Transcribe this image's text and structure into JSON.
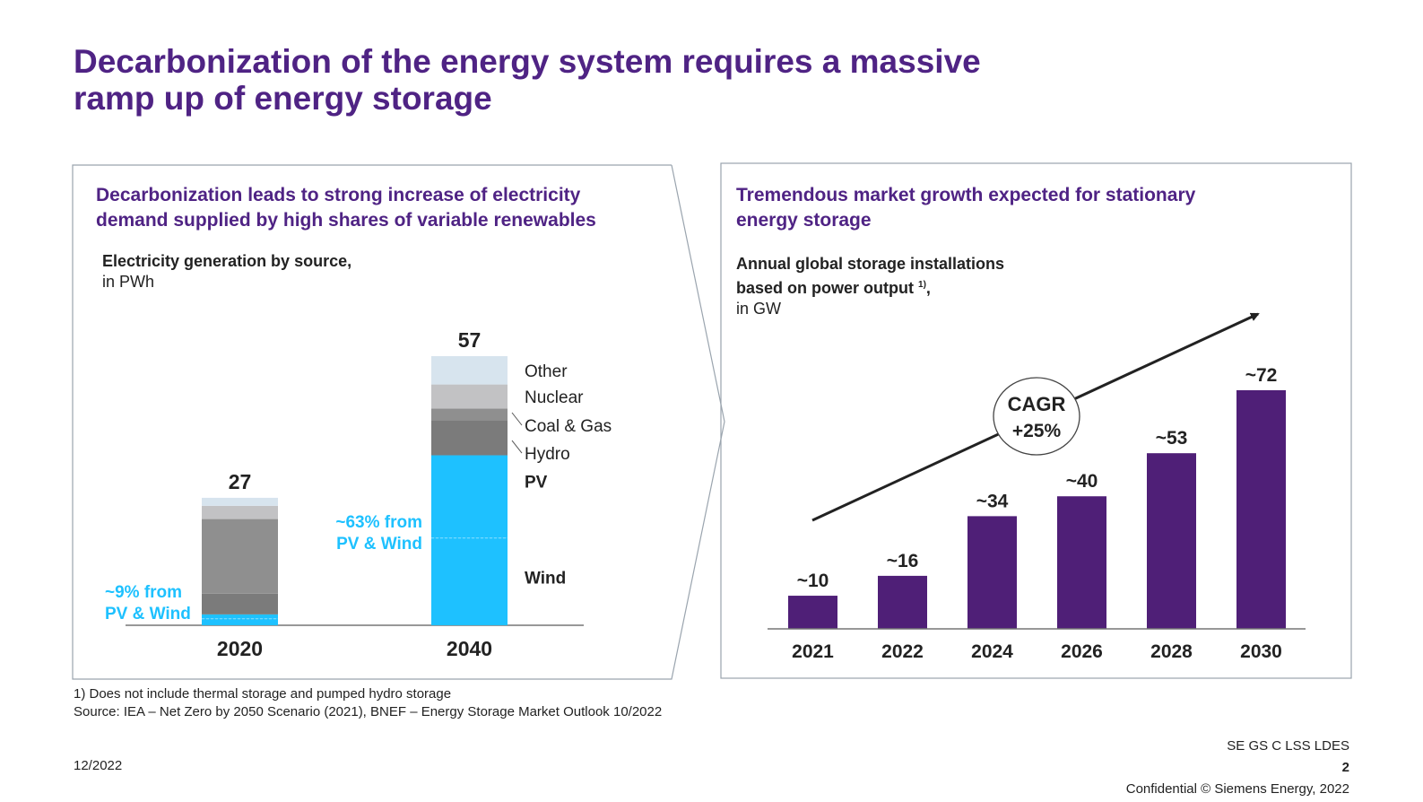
{
  "title": {
    "line1": "Decarbonization of the energy system requires a massive",
    "line2": "ramp up of energy storage"
  },
  "left_panel": {
    "title_line1": "Decarbonization leads to strong increase of electricity",
    "title_line2": "demand supplied by high shares of variable renewables",
    "unit_label": "Electricity generation by source,",
    "unit": "in PWh"
  },
  "right_panel": {
    "title_line1": "Tremendous market growth expected for stationary",
    "title_line2": "energy storage",
    "unit_line1": "Annual global storage installations",
    "unit_line2": "based on power output",
    "unit_sup": "1)",
    "unit_line2_suffix": ",",
    "unit": "in GW"
  },
  "chart_data": [
    {
      "type": "bar",
      "stacked": true,
      "title": "Electricity generation by source",
      "ylabel": "PWh",
      "categories": [
        "2020",
        "2040"
      ],
      "totals": [
        27,
        57
      ],
      "total_labels": [
        "27",
        "57"
      ],
      "series": [
        {
          "name": "Wind",
          "values": [
            1.4,
            18.5
          ],
          "color": "#1ec1ff"
        },
        {
          "name": "PV",
          "values": [
            0.9,
            17.5
          ],
          "color": "#1ec1ff"
        },
        {
          "name": "Hydro",
          "values": [
            4.4,
            7.4
          ],
          "color": "#7b7b7b"
        },
        {
          "name": "Coal & Gas",
          "values": [
            15.8,
            2.5
          ],
          "color": "#8f8f8f"
        },
        {
          "name": "Nuclear",
          "values": [
            2.8,
            5.1
          ],
          "color": "#c2c2c4"
        },
        {
          "name": "Other",
          "values": [
            1.7,
            6.0
          ],
          "color": "#d7e4ee"
        }
      ],
      "annotations": [
        {
          "line1": "~9% from",
          "line2": "PV & Wind",
          "category": "2020"
        },
        {
          "line1": "~63% from",
          "line2": "PV & Wind",
          "category": "2040"
        }
      ],
      "ylim": [
        0,
        60
      ]
    },
    {
      "type": "bar",
      "title": "Annual global storage installations based on power output",
      "ylabel": "GW",
      "categories": [
        "2021",
        "2022",
        "2024",
        "2026",
        "2028",
        "2030"
      ],
      "values": [
        10,
        16,
        34,
        40,
        53,
        72
      ],
      "value_labels": [
        "~10",
        "~16",
        "~34",
        "~40",
        "~53",
        "~72"
      ],
      "color": "#4f1f77",
      "cagr_label_line1": "CAGR",
      "cagr_label_line2": "+25%",
      "ylim": [
        0,
        80
      ]
    }
  ],
  "footnote": {
    "line1": "1) Does not include thermal storage and pumped hydro storage",
    "line2": "Source: IEA – Net Zero by 2050 Scenario (2021), BNEF – Energy Storage Market Outlook 10/2022"
  },
  "footer": {
    "date": "12/2022",
    "code": "SE GS C LSS LDES",
    "page": "2",
    "confidential": "Confidential © Siemens Energy, 2022"
  }
}
